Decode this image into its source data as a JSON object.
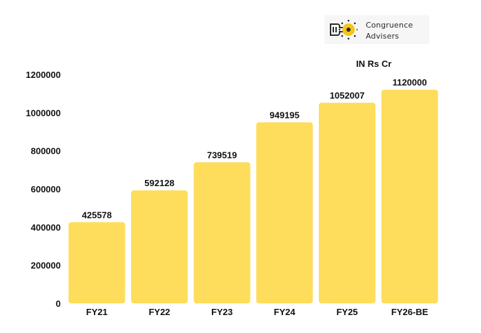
{
  "logo": {
    "line1": "Congruence",
    "line2": "Advisers",
    "icon": "key-gear-icon",
    "colors": {
      "mark": "#f5c518",
      "ink": "#2a2a2a"
    }
  },
  "unit_note": "IN Rs Cr",
  "colors": {
    "bar": "#ffdd5c",
    "text": "#111111"
  },
  "chart_data": {
    "type": "bar",
    "categories": [
      "FY21",
      "FY22",
      "FY23",
      "FY24",
      "FY25",
      "FY26-BE"
    ],
    "values": [
      425578,
      592128,
      739519,
      949195,
      1052007,
      1120000
    ],
    "data_labels": [
      "425578",
      "592128",
      "739519",
      "949195",
      "1052007",
      "1120000"
    ],
    "yticks": [
      0,
      200000,
      400000,
      600000,
      800000,
      1000000,
      1200000
    ],
    "ytick_labels": [
      "0",
      "200000",
      "400000",
      "600000",
      "800000",
      "1000000",
      "1200000"
    ],
    "ylim": [
      0,
      1200000
    ],
    "title": "",
    "xlabel": "",
    "ylabel": "",
    "grid": false,
    "legend": "none"
  }
}
